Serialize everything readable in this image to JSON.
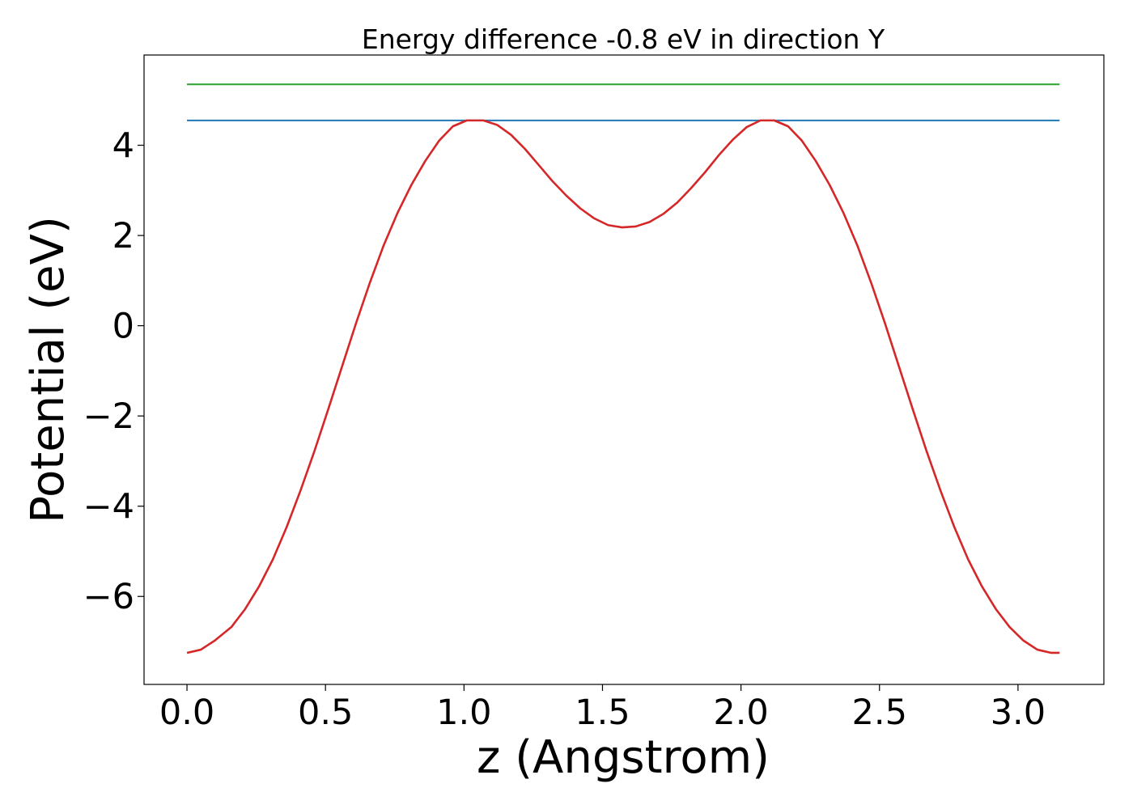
{
  "chart_data": {
    "type": "line",
    "title": "Energy difference -0.8 eV in direction Y",
    "xlabel": "z (Angstrom)",
    "ylabel": "Potential (eV)",
    "xlim": [
      -0.155,
      3.31
    ],
    "ylim": [
      -7.95,
      6.0
    ],
    "xticks": [
      {
        "value": 0.0,
        "label": "0.0"
      },
      {
        "value": 0.5,
        "label": "0.5"
      },
      {
        "value": 1.0,
        "label": "1.0"
      },
      {
        "value": 1.5,
        "label": "1.5"
      },
      {
        "value": 2.0,
        "label": "2.0"
      },
      {
        "value": 2.5,
        "label": "2.5"
      },
      {
        "value": 3.0,
        "label": "3.0"
      }
    ],
    "yticks": [
      {
        "value": -6,
        "label": "−6"
      },
      {
        "value": -4,
        "label": "−4"
      },
      {
        "value": -2,
        "label": "−2"
      },
      {
        "value": 0,
        "label": "0"
      },
      {
        "value": 2,
        "label": "2"
      },
      {
        "value": 4,
        "label": "4"
      }
    ],
    "grid": false,
    "legend": "none",
    "series": [
      {
        "color": "#2ca02c",
        "x": [
          0.0,
          3.15
        ],
        "y": [
          5.35,
          5.35
        ]
      },
      {
        "color": "#1f77b4",
        "x": [
          0.0,
          3.15
        ],
        "y": [
          4.55,
          4.55
        ]
      },
      {
        "color": "#d62728",
        "x": [
          0.0,
          0.05,
          0.1,
          0.16,
          0.21,
          0.26,
          0.31,
          0.36,
          0.41,
          0.46,
          0.51,
          0.56,
          0.61,
          0.66,
          0.71,
          0.76,
          0.81,
          0.86,
          0.91,
          0.96,
          1.01,
          1.07,
          1.12,
          1.17,
          1.22,
          1.27,
          1.32,
          1.37,
          1.42,
          1.47,
          1.52,
          1.57,
          1.62,
          1.67,
          1.72,
          1.77,
          1.82,
          1.87,
          1.92,
          1.97,
          2.02,
          2.07,
          2.12,
          2.17,
          2.22,
          2.27,
          2.32,
          2.37,
          2.42,
          2.47,
          2.52,
          2.57,
          2.62,
          2.67,
          2.72,
          2.77,
          2.82,
          2.87,
          2.92,
          2.97,
          3.02,
          3.07,
          3.12,
          3.15
        ],
        "y": [
          -7.25,
          -7.18,
          -6.98,
          -6.68,
          -6.28,
          -5.78,
          -5.18,
          -4.46,
          -3.65,
          -2.78,
          -1.85,
          -0.9,
          0.05,
          0.95,
          1.78,
          2.5,
          3.12,
          3.65,
          4.1,
          4.42,
          4.55,
          4.55,
          4.45,
          4.23,
          3.92,
          3.56,
          3.2,
          2.88,
          2.6,
          2.38,
          2.23,
          2.18,
          2.2,
          2.3,
          2.48,
          2.73,
          3.05,
          3.4,
          3.78,
          4.12,
          4.4,
          4.55,
          4.55,
          4.42,
          4.1,
          3.65,
          3.12,
          2.5,
          1.78,
          0.95,
          0.05,
          -0.9,
          -1.85,
          -2.78,
          -3.65,
          -4.46,
          -5.18,
          -5.78,
          -6.28,
          -6.68,
          -6.98,
          -7.18,
          -7.25,
          -7.25
        ]
      }
    ]
  }
}
